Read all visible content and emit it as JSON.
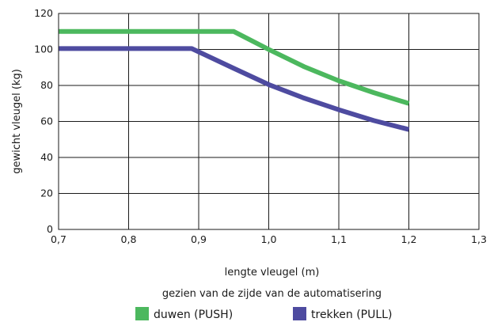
{
  "chart_data": {
    "type": "line",
    "xlabel": "lengte vleugel (m)",
    "ylabel": "gewicht vleugel (kg)",
    "subtitle": "gezien van de zijde van de automatisering",
    "xlim": [
      0.7,
      1.3
    ],
    "ylim": [
      0,
      120
    ],
    "x_ticks": [
      0.7,
      0.8,
      0.9,
      1.0,
      1.1,
      1.2,
      1.3
    ],
    "x_tick_labels": [
      "0,7",
      "0,8",
      "0,9",
      "1,0",
      "1,1",
      "1,2",
      "1,3"
    ],
    "y_ticks": [
      0,
      20,
      40,
      60,
      80,
      100,
      120
    ],
    "y_tick_labels": [
      "0",
      "20",
      "40",
      "60",
      "80",
      "100",
      "120"
    ],
    "grid": true,
    "legend_position": "bottom",
    "series": [
      {
        "name": "duwen (PUSH)",
        "color": "#4cb85e",
        "x": [
          0.7,
          0.8,
          0.9,
          0.95,
          1.0,
          1.05,
          1.1,
          1.15,
          1.2
        ],
        "y": [
          110,
          110,
          110,
          110,
          100,
          90.5,
          82.6,
          76,
          70
        ]
      },
      {
        "name": "trekken (PULL)",
        "color": "#4e4ba0",
        "x": [
          0.7,
          0.8,
          0.89,
          0.95,
          1.0,
          1.05,
          1.1,
          1.15,
          1.2
        ],
        "y": [
          100.5,
          100.5,
          100.5,
          89.5,
          80.5,
          73,
          66.5,
          60.5,
          55.5
        ]
      }
    ]
  }
}
